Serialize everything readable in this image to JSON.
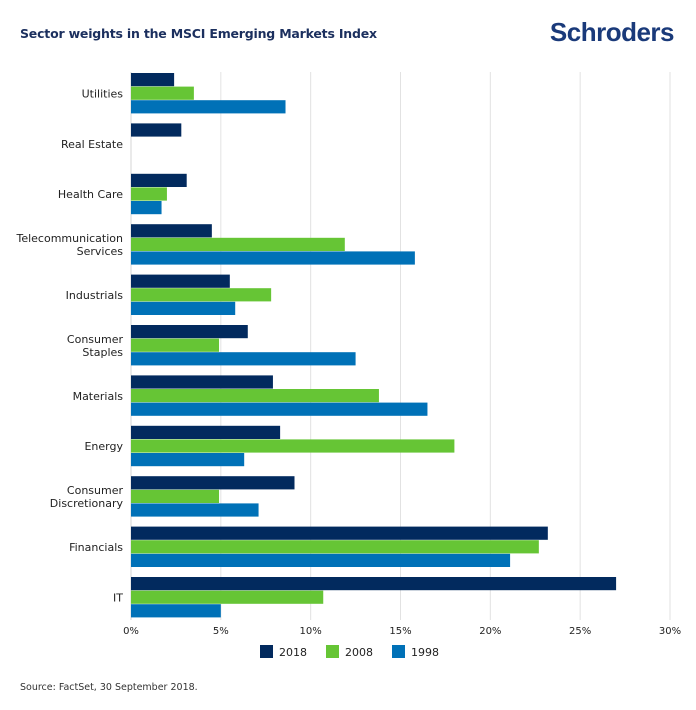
{
  "header": {
    "title": "Sector weights in the MSCI Emerging Markets Index",
    "logo": "Schroders"
  },
  "footer": {
    "source": "Source: FactSet, 30 September 2018."
  },
  "chart_data": {
    "type": "bar",
    "orientation": "horizontal",
    "title": "Sector weights in the MSCI Emerging Markets Index",
    "xlabel": "",
    "ylabel": "",
    "xlim": [
      0,
      30
    ],
    "x_ticks": [
      0,
      5,
      10,
      15,
      20,
      25,
      30
    ],
    "x_tick_labels": [
      "0%",
      "5%",
      "10%",
      "15%",
      "20%",
      "25%",
      "30%"
    ],
    "grid": "vertical",
    "legend_position": "bottom",
    "categories": [
      "Utilities",
      "Real Estate",
      "Health Care",
      "Telecommunication Services",
      "Industrials",
      "Consumer Staples",
      "Materials",
      "Energy",
      "Consumer Discretionary",
      "Financials",
      "IT"
    ],
    "category_label_lines": [
      [
        "Utilities"
      ],
      [
        "Real Estate"
      ],
      [
        "Health Care"
      ],
      [
        "Telecommunication",
        "Services"
      ],
      [
        "Industrials"
      ],
      [
        "Consumer",
        "Staples"
      ],
      [
        "Materials"
      ],
      [
        "Energy"
      ],
      [
        "Consumer",
        "Discretionary"
      ],
      [
        "Financials"
      ],
      [
        "IT"
      ]
    ],
    "series": [
      {
        "name": "2018",
        "color": "#022a5e",
        "values": [
          2.4,
          2.8,
          3.1,
          4.5,
          5.5,
          6.5,
          7.9,
          8.3,
          9.1,
          23.2,
          27.0
        ]
      },
      {
        "name": "2008",
        "color": "#66c535",
        "values": [
          3.5,
          null,
          2.0,
          11.9,
          7.8,
          4.9,
          13.8,
          18.0,
          4.9,
          22.7,
          10.7
        ]
      },
      {
        "name": "1998",
        "color": "#0071b7",
        "values": [
          8.6,
          null,
          1.7,
          15.8,
          5.8,
          12.5,
          16.5,
          6.3,
          7.1,
          21.1,
          5.0
        ]
      }
    ]
  }
}
